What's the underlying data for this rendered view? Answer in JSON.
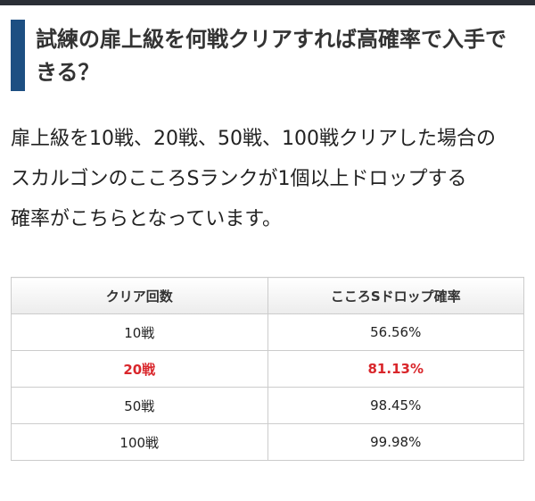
{
  "heading": {
    "title": "試練の扉上級を何戦クリアすれば高確率で入手できる？"
  },
  "paragraph": {
    "lines": [
      "扉上級を10戦、20戦、50戦、100戦クリアした場合の",
      "スカルゴンのこころSランクが1個以上ドロップする",
      "確率がこちらとなっています。"
    ]
  },
  "table": {
    "header": [
      "クリア回数",
      "こころSドロップ確率"
    ],
    "rows": [
      [
        "10戦",
        "56.56%"
      ],
      [
        "20戦",
        "81.13%"
      ],
      [
        "50戦",
        "98.45%"
      ],
      [
        "100戦",
        "99.98%"
      ]
    ],
    "highlight_row": 1,
    "highlight_color": "#d9262b"
  }
}
